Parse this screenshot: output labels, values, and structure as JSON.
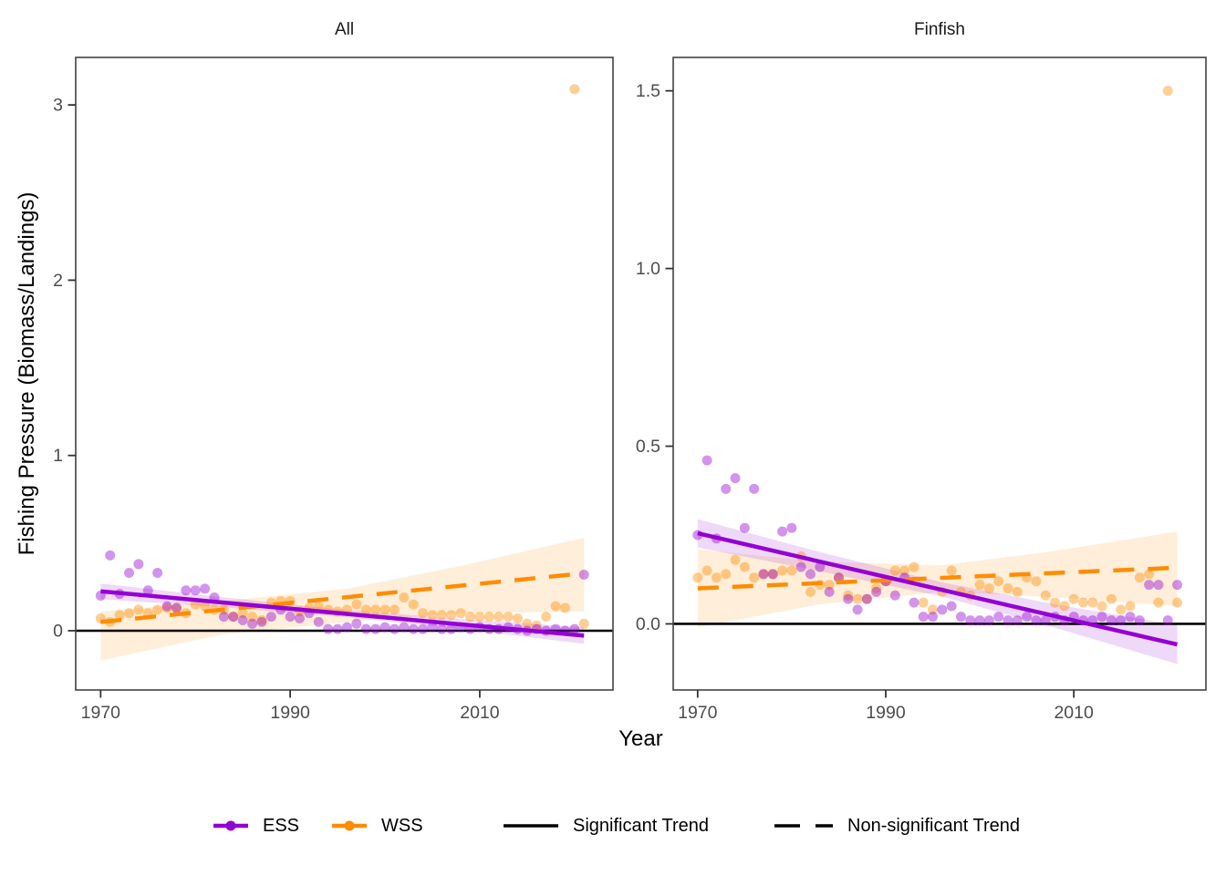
{
  "chart_data": {
    "type": "scatter",
    "xlabel": "Year",
    "ylabel": "Fishing Pressure (Biomass/Landings)",
    "legend": {
      "ess": "ESS",
      "wss": "WSS",
      "sig": "Significant Trend",
      "nonsig": "Non-significant Trend"
    },
    "colors": {
      "ess": "#9400D3",
      "wss": "#FF8C00",
      "ribbon_opacity": 0.15,
      "point_opacity": 0.42,
      "zero_line": "#000000",
      "tick_mark": "#333333",
      "tick_text": "#4d4d4d",
      "panel_border": "#4d4d4d"
    },
    "years": [
      1970,
      1971,
      1972,
      1973,
      1974,
      1975,
      1976,
      1977,
      1978,
      1979,
      1980,
      1981,
      1982,
      1983,
      1984,
      1985,
      1986,
      1987,
      1988,
      1989,
      1990,
      1991,
      1992,
      1993,
      1994,
      1995,
      1996,
      1997,
      1998,
      1999,
      2000,
      2001,
      2002,
      2003,
      2004,
      2005,
      2006,
      2007,
      2008,
      2009,
      2010,
      2011,
      2012,
      2013,
      2014,
      2015,
      2016,
      2017,
      2018,
      2019,
      2020,
      2021
    ],
    "facets": [
      {
        "label": "All",
        "xlim": [
          1967.37,
          2024.06
        ],
        "ylim": [
          -0.338,
          3.271
        ],
        "x_ticks": [
          {
            "v": 1970,
            "label": "1970"
          },
          {
            "v": 1990,
            "label": "1990"
          },
          {
            "v": 2010,
            "label": "2010"
          }
        ],
        "y_ticks": [
          {
            "v": 0,
            "label": "0"
          },
          {
            "v": 1,
            "label": "1"
          },
          {
            "v": 2,
            "label": "2"
          },
          {
            "v": 3,
            "label": "3"
          }
        ],
        "ess": [
          0.2,
          0.43,
          0.21,
          0.33,
          0.38,
          0.23,
          0.33,
          0.14,
          0.13,
          0.23,
          0.23,
          0.24,
          0.19,
          0.08,
          0.08,
          0.06,
          0.04,
          0.05,
          0.08,
          0.12,
          0.08,
          0.07,
          0.1,
          0.05,
          0.01,
          0.01,
          0.02,
          0.04,
          0.01,
          0.01,
          0.02,
          0.01,
          0.02,
          0.01,
          0.01,
          0.02,
          0.01,
          0.01,
          0.02,
          0.01,
          0.02,
          0.01,
          0.01,
          0.02,
          0.01,
          0.0,
          0.01,
          0.0,
          0.01,
          0.0,
          0.01,
          0.32
        ],
        "wss": [
          0.07,
          0.05,
          0.09,
          0.1,
          0.12,
          0.1,
          0.12,
          0.13,
          0.13,
          0.1,
          0.15,
          0.14,
          0.12,
          0.12,
          0.08,
          0.1,
          0.08,
          0.06,
          0.16,
          0.17,
          0.17,
          0.11,
          0.13,
          0.14,
          0.12,
          0.11,
          0.12,
          0.15,
          0.12,
          0.12,
          0.12,
          0.12,
          0.19,
          0.15,
          0.1,
          0.09,
          0.09,
          0.09,
          0.1,
          0.08,
          0.08,
          0.08,
          0.08,
          0.08,
          0.07,
          0.04,
          0.03,
          0.08,
          0.14,
          0.13,
          3.09,
          0.04
        ],
        "trend_ess": {
          "x": [
            1970,
            2021
          ],
          "y": [
            0.225,
            -0.028
          ],
          "style": "solid"
        },
        "trend_wss": {
          "x": [
            1970,
            2021
          ],
          "y": [
            0.05,
            0.328
          ],
          "style": "dashed"
        },
        "ribbon_ess": {
          "x": [
            1970,
            1983,
            1996,
            2008,
            2021
          ],
          "top": [
            0.27,
            0.19,
            0.118,
            0.067,
            0.019
          ],
          "bottom": [
            0.18,
            0.134,
            0.078,
            0.011,
            -0.075
          ]
        },
        "ribbon_wss": {
          "x": [
            1970,
            1983,
            1996,
            2008,
            2021
          ],
          "top": [
            0.11,
            0.17,
            0.24,
            0.37,
            0.53
          ],
          "bottom": [
            -0.17,
            -0.02,
            0.05,
            0.1,
            0.11
          ]
        }
      },
      {
        "label": "Finfish",
        "xlim": [
          1967.4,
          2024.05
        ],
        "ylim": [
          -0.186,
          1.594
        ],
        "x_ticks": [
          {
            "v": 1970,
            "label": "1970"
          },
          {
            "v": 1990,
            "label": "1990"
          },
          {
            "v": 2010,
            "label": "2010"
          }
        ],
        "y_ticks": [
          {
            "v": 0,
            "label": "0.0"
          },
          {
            "v": 0.5,
            "label": "0.5"
          },
          {
            "v": 1,
            "label": "1.0"
          },
          {
            "v": 1.5,
            "label": "1.5"
          }
        ],
        "ess": [
          0.25,
          0.46,
          0.24,
          0.38,
          0.41,
          0.27,
          0.38,
          0.14,
          0.14,
          0.26,
          0.27,
          0.16,
          0.14,
          0.16,
          0.09,
          0.13,
          0.07,
          0.04,
          0.07,
          0.09,
          0.12,
          0.08,
          0.13,
          0.06,
          0.02,
          0.02,
          0.04,
          0.05,
          0.02,
          0.01,
          0.01,
          0.01,
          0.02,
          0.01,
          0.01,
          0.02,
          0.01,
          0.01,
          0.02,
          0.01,
          0.02,
          0.01,
          0.01,
          0.02,
          0.01,
          0.01,
          0.02,
          0.01,
          0.11,
          0.11,
          0.01,
          0.11
        ],
        "wss": [
          0.13,
          0.15,
          0.13,
          0.14,
          0.18,
          0.16,
          0.13,
          0.14,
          0.14,
          0.15,
          0.15,
          0.19,
          0.09,
          0.11,
          0.11,
          0.13,
          0.08,
          0.07,
          0.07,
          0.1,
          0.12,
          0.15,
          0.15,
          0.16,
          0.06,
          0.04,
          0.09,
          0.15,
          0.09,
          0.08,
          0.11,
          0.1,
          0.12,
          0.1,
          0.09,
          0.13,
          0.12,
          0.08,
          0.06,
          0.05,
          0.07,
          0.06,
          0.06,
          0.05,
          0.07,
          0.04,
          0.05,
          0.13,
          0.14,
          0.06,
          1.5,
          0.06
        ],
        "trend_ess": {
          "x": [
            1970,
            2021
          ],
          "y": [
            0.255,
            -0.058
          ],
          "style": "solid"
        },
        "trend_wss": {
          "x": [
            1970,
            2021
          ],
          "y": [
            0.1,
            0.158
          ],
          "style": "dashed"
        },
        "ribbon_ess": {
          "x": [
            1970,
            1983,
            1996,
            2008,
            2021
          ],
          "top": [
            0.295,
            0.202,
            0.117,
            0.055,
            -0.003
          ],
          "bottom": [
            0.215,
            0.148,
            0.077,
            -0.011,
            -0.113
          ]
        },
        "ribbon_wss": {
          "x": [
            1970,
            1983,
            1996,
            2008,
            2021
          ],
          "top": [
            0.21,
            0.175,
            0.165,
            0.205,
            0.26
          ],
          "bottom": [
            -0.01,
            0.055,
            0.09,
            0.075,
            0.05
          ]
        }
      }
    ],
    "zero_line_y": 0,
    "point_radius": 5.5,
    "layout_hints": {
      "grid": "off",
      "legend_position": "bottom",
      "facet_strip_background": "none"
    }
  }
}
